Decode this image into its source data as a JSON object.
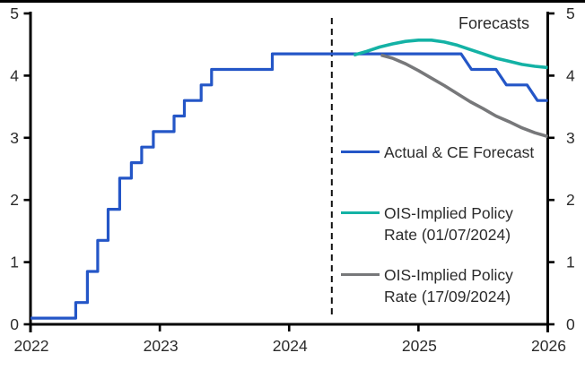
{
  "chart_data": {
    "type": "line",
    "title": "",
    "annotation": "Forecasts",
    "xlim": [
      2022,
      2026
    ],
    "ylim": [
      0,
      5
    ],
    "grid": false,
    "x_axis": {
      "ticks": [
        "2022",
        "2023",
        "2024",
        "2025",
        "2026"
      ]
    },
    "y_axis_left": {
      "ticks": [
        "0",
        "1",
        "2",
        "3",
        "4",
        "5"
      ]
    },
    "y_axis_right": {
      "ticks": [
        "0",
        "1",
        "2",
        "3",
        "4",
        "5"
      ]
    },
    "forecast_divider_x": 2024.33,
    "series": [
      {
        "name": "Actual & CE Forecast",
        "color": "#2456C7",
        "style": "step",
        "points": [
          [
            2022.0,
            0.1
          ],
          [
            2022.35,
            0.1
          ],
          [
            2022.35,
            0.35
          ],
          [
            2022.44,
            0.35
          ],
          [
            2022.44,
            0.85
          ],
          [
            2022.52,
            0.85
          ],
          [
            2022.52,
            1.35
          ],
          [
            2022.6,
            1.35
          ],
          [
            2022.6,
            1.85
          ],
          [
            2022.69,
            1.85
          ],
          [
            2022.69,
            2.35
          ],
          [
            2022.78,
            2.35
          ],
          [
            2022.78,
            2.6
          ],
          [
            2022.86,
            2.6
          ],
          [
            2022.86,
            2.85
          ],
          [
            2022.95,
            2.85
          ],
          [
            2022.95,
            3.1
          ],
          [
            2023.11,
            3.1
          ],
          [
            2023.11,
            3.35
          ],
          [
            2023.19,
            3.35
          ],
          [
            2023.19,
            3.6
          ],
          [
            2023.32,
            3.6
          ],
          [
            2023.32,
            3.85
          ],
          [
            2023.4,
            3.85
          ],
          [
            2023.4,
            4.1
          ],
          [
            2023.87,
            4.1
          ],
          [
            2023.87,
            4.35
          ],
          [
            2025.33,
            4.35
          ],
          [
            2025.41,
            4.1
          ],
          [
            2025.6,
            4.1
          ],
          [
            2025.68,
            3.85
          ],
          [
            2025.84,
            3.85
          ],
          [
            2025.92,
            3.6
          ],
          [
            2026.0,
            3.6
          ]
        ]
      },
      {
        "name": "OIS-Implied Policy Rate (01/07/2024)",
        "color": "#14B2A5",
        "style": "smooth",
        "points": [
          [
            2024.5,
            4.33
          ],
          [
            2024.6,
            4.39
          ],
          [
            2024.7,
            4.46
          ],
          [
            2024.8,
            4.51
          ],
          [
            2024.9,
            4.55
          ],
          [
            2025.0,
            4.57
          ],
          [
            2025.1,
            4.57
          ],
          [
            2025.2,
            4.54
          ],
          [
            2025.3,
            4.49
          ],
          [
            2025.4,
            4.42
          ],
          [
            2025.5,
            4.35
          ],
          [
            2025.6,
            4.28
          ],
          [
            2025.7,
            4.23
          ],
          [
            2025.8,
            4.18
          ],
          [
            2025.9,
            4.15
          ],
          [
            2026.0,
            4.13
          ]
        ]
      },
      {
        "name": "OIS-Implied Policy Rate (17/09/2024)",
        "color": "#77787A",
        "style": "smooth",
        "points": [
          [
            2024.71,
            4.33
          ],
          [
            2024.8,
            4.28
          ],
          [
            2024.9,
            4.19
          ],
          [
            2025.0,
            4.08
          ],
          [
            2025.1,
            3.96
          ],
          [
            2025.2,
            3.84
          ],
          [
            2025.3,
            3.71
          ],
          [
            2025.4,
            3.58
          ],
          [
            2025.5,
            3.47
          ],
          [
            2025.6,
            3.35
          ],
          [
            2025.7,
            3.26
          ],
          [
            2025.8,
            3.16
          ],
          [
            2025.9,
            3.08
          ],
          [
            2026.0,
            3.02
          ]
        ]
      }
    ],
    "legend": [
      {
        "color": "#2456C7",
        "lines": [
          "Actual & CE Forecast"
        ]
      },
      {
        "color": "#14B2A5",
        "lines": [
          "OIS-Implied Policy",
          "Rate (01/07/2024)"
        ]
      },
      {
        "color": "#77787A",
        "lines": [
          "OIS-Implied Policy",
          "Rate (17/09/2024)"
        ]
      }
    ],
    "colors": {
      "axis": "#000000",
      "text": "#2b2b2b",
      "divider": "#111111",
      "background": "#ffffff"
    }
  }
}
